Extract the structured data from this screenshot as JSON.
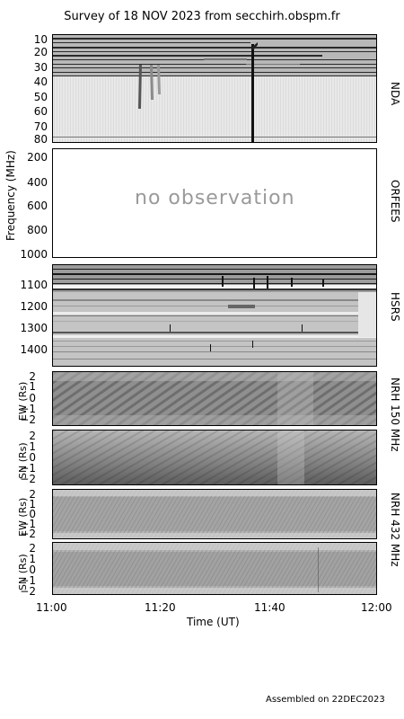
{
  "title": "Survey of 18 NOV 2023 from secchirh.obspm.fr",
  "footer": "Assembled on 22DEC2023",
  "no_observation": "no observation",
  "chart_data": [
    {
      "type": "heatmap",
      "instrument": "NDA",
      "yaxis_label": "Frequency (MHz)",
      "y_ticks": [
        "10",
        "20",
        "30",
        "40",
        "50",
        "60",
        "70",
        "80"
      ],
      "features": [
        "vertical burst near 11:36"
      ]
    },
    {
      "type": "heatmap",
      "instrument": "ORFEES",
      "yaxis_label": "Frequency (MHz)",
      "y_ticks": [
        "200",
        "400",
        "600",
        "800",
        "1000"
      ],
      "status": "no observation"
    },
    {
      "type": "heatmap",
      "instrument": "HSRS",
      "yaxis_label": "Frequency (MHz)",
      "y_ticks": [
        "1100",
        "1200",
        "1300",
        "1400"
      ]
    },
    {
      "type": "heatmap",
      "instrument": "NRH 150 MHz",
      "panels": [
        {
          "ylabel": "EW (Rs)",
          "y_ticks": [
            "2",
            "1",
            "0",
            "−1",
            "−2"
          ]
        },
        {
          "ylabel": "SN (Rs)",
          "y_ticks": [
            "2",
            "1",
            "0",
            "−1",
            "−2"
          ]
        }
      ]
    },
    {
      "type": "heatmap",
      "instrument": "NRH 432 MHz",
      "panels": [
        {
          "ylabel": "EW (Rs)",
          "y_ticks": [
            "2",
            "1",
            "0",
            "−1",
            "−2"
          ]
        },
        {
          "ylabel": "SN (Rs)",
          "y_ticks": [
            "2",
            "1",
            "0",
            "−1",
            "−2"
          ]
        }
      ]
    }
  ],
  "x_axis": {
    "label": "Time (UT)",
    "ticks": [
      "11:00",
      "11:20",
      "11:40",
      "12:00"
    ],
    "range": [
      "11:00",
      "12:00"
    ]
  },
  "colors": {
    "frame": "#000000",
    "background": "#ffffff",
    "dynspec_bg": "#e6e6e6"
  }
}
